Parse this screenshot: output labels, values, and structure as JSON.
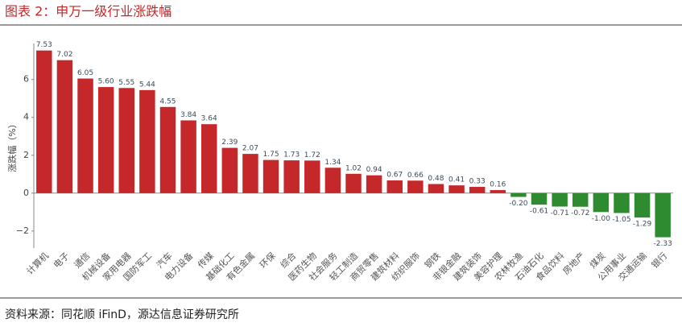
{
  "chart_data": {
    "type": "bar",
    "title": "图表 2：申万一级行业涨跌幅",
    "y_label": "涨跌幅（%）",
    "source": "资料来源：同花顺 iFinD，源达信息证券研究所",
    "categories": [
      "计算机",
      "电子",
      "通信",
      "机械设备",
      "家用电器",
      "国防军工",
      "汽车",
      "电力设备",
      "传媒",
      "基础化工",
      "有色金属",
      "环保",
      "综合",
      "医药生物",
      "社会服务",
      "轻工制造",
      "商贸零售",
      "建筑材料",
      "纺织服饰",
      "钢铁",
      "非银金融",
      "建筑装饰",
      "美容护理",
      "农林牧渔",
      "石油石化",
      "食品饮料",
      "房地产",
      "煤炭",
      "公用事业",
      "交通运输",
      "银行"
    ],
    "values": [
      7.53,
      7.02,
      6.05,
      5.6,
      5.55,
      5.44,
      4.55,
      3.84,
      3.64,
      2.39,
      2.07,
      1.75,
      1.73,
      1.72,
      1.34,
      1.02,
      0.94,
      0.67,
      0.66,
      0.48,
      0.41,
      0.33,
      0.16,
      -0.2,
      -0.61,
      -0.71,
      -0.72,
      -1.0,
      -1.05,
      -1.29,
      -2.33
    ],
    "value_labels": [
      "7.53",
      "7.02",
      "6.05",
      "5.60",
      "5.55",
      "5.44",
      "4.55",
      "3.84",
      "3.64",
      "2.39",
      "2.07",
      "1.75",
      "1.73",
      "1.72",
      "1.34",
      "1.02",
      "0.94",
      "0.67",
      "0.66",
      "0.48",
      "0.41",
      "0.33",
      "0.16",
      "-0.20",
      "-0.61",
      "-0.71",
      "-0.72",
      "-1.00",
      "-1.05",
      "-1.29",
      "-2.33"
    ],
    "colors": {
      "positive": "#c4282b",
      "negative": "#2e8b30"
    },
    "ylim": [
      -2.9,
      7.9
    ],
    "yticks": [
      {
        "value": -2,
        "label": "−2"
      },
      0,
      2,
      4,
      6
    ]
  }
}
